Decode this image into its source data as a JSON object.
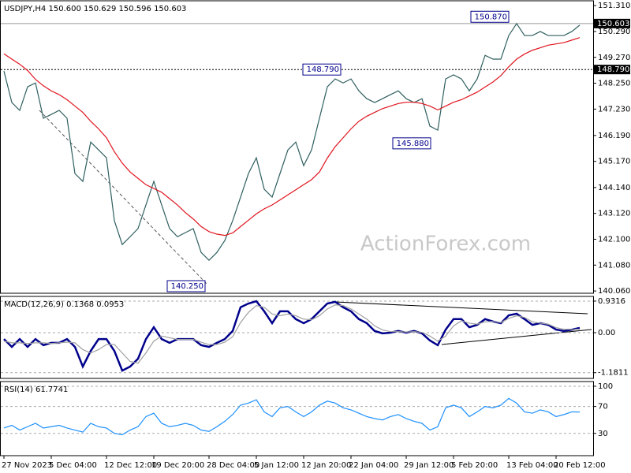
{
  "chart_data": [
    {
      "type": "line",
      "title": "USDJPY,H4  150.600 150.629 150.596 150.603",
      "watermark": "ActionForex.com",
      "categories": [
        "27 Nov 2023",
        null,
        null,
        null,
        null,
        null,
        "5 Dec 04:00",
        null,
        null,
        null,
        null,
        null,
        null,
        "12 Dec 12:00",
        null,
        null,
        null,
        null,
        null,
        "19 Dec 20:00",
        null,
        null,
        null,
        null,
        null,
        null,
        "28 Dec 04:00",
        null,
        null,
        null,
        null,
        null,
        "5 Jan 12:00",
        null,
        null,
        null,
        null,
        null,
        "12 Jan 20:00",
        null,
        null,
        null,
        null,
        null,
        "22 Jan 04:00",
        null,
        null,
        null,
        null,
        null,
        null,
        "29 Jan 12:00",
        null,
        null,
        null,
        null,
        null,
        "5 Feb 20:00",
        null,
        null,
        null,
        null,
        null,
        null,
        "13 Feb 04:00",
        null,
        null,
        null,
        null,
        null,
        "20 Feb 12:00",
        null,
        null,
        null
      ],
      "series": [
        {
          "color": "#2f5f5f",
          "values": [
            148.73,
            147.49,
            147.18,
            148.11,
            148.26,
            146.87,
            147.02,
            147.18,
            146.87,
            144.69,
            144.38,
            145.93,
            145.62,
            145.31,
            142.83,
            141.89,
            142.2,
            142.52,
            143.45,
            144.38,
            143.45,
            142.52,
            142.2,
            142.36,
            142.52,
            141.58,
            141.27,
            141.58,
            142.05,
            142.83,
            143.76,
            144.69,
            145.31,
            144.07,
            143.76,
            144.69,
            145.62,
            145.93,
            145.0,
            145.62,
            146.87,
            148.11,
            148.42,
            148.26,
            148.42,
            147.95,
            147.64,
            147.49,
            147.64,
            147.8,
            147.95,
            147.64,
            147.49,
            147.64,
            146.56,
            146.4,
            148.42,
            148.58,
            148.42,
            147.95,
            148.42,
            149.35,
            149.2,
            149.2,
            150.13,
            150.6,
            150.13,
            150.13,
            150.29,
            150.13,
            150.13,
            150.13,
            150.29,
            150.54
          ]
        },
        {
          "color": "#e0141e",
          "values": [
            149.41,
            149.2,
            149.0,
            148.75,
            148.4,
            148.15,
            147.95,
            147.8,
            147.6,
            147.35,
            147.1,
            146.75,
            146.45,
            146.1,
            145.55,
            145.1,
            144.75,
            144.5,
            144.25,
            144.1,
            143.95,
            143.7,
            143.45,
            143.15,
            142.9,
            142.6,
            142.4,
            142.3,
            142.25,
            142.35,
            142.6,
            142.85,
            143.1,
            143.3,
            143.45,
            143.65,
            143.85,
            144.05,
            144.25,
            144.45,
            144.75,
            145.3,
            145.75,
            146.1,
            146.45,
            146.75,
            146.95,
            147.1,
            147.25,
            147.35,
            147.45,
            147.5,
            147.5,
            147.45,
            147.35,
            147.2,
            147.35,
            147.5,
            147.6,
            147.75,
            147.9,
            148.1,
            148.3,
            148.55,
            148.9,
            149.2,
            149.4,
            149.55,
            149.65,
            149.75,
            149.8,
            149.85,
            149.95,
            150.05
          ]
        }
      ],
      "ylim": [
        139.97,
        151.5
      ],
      "yticks": [
        {
          "value": 151.31,
          "label": "151.310"
        },
        {
          "value": 150.29,
          "label": "150.290"
        },
        {
          "value": 149.27,
          "label": "149.270"
        },
        {
          "value": 148.25,
          "label": "148.250"
        },
        {
          "value": 147.23,
          "label": "147.230"
        },
        {
          "value": 146.19,
          "label": "146.190"
        },
        {
          "value": 145.17,
          "label": "145.170"
        },
        {
          "value": 144.14,
          "label": "144.140"
        },
        {
          "value": 143.12,
          "label": "143.120"
        },
        {
          "value": 142.1,
          "label": "142.100"
        },
        {
          "value": 141.08,
          "label": "141.080"
        },
        {
          "value": 140.06,
          "label": "140.060"
        }
      ],
      "price_lines": [
        {
          "value": 150.603,
          "label": "150.603",
          "color": "#999999"
        },
        {
          "value": 148.79,
          "label": "148.790",
          "color": "#000000"
        }
      ],
      "annotations": [
        {
          "value": 150.87,
          "label": "150.870"
        },
        {
          "value": 148.79,
          "label": "148.790"
        },
        {
          "value": 145.88,
          "label": "145.880"
        },
        {
          "value": 140.25,
          "label": "140.250"
        }
      ],
      "grid": false
    },
    {
      "type": "line",
      "title": "MACD(12,26,9) 0.1368 0.0953",
      "series": [
        {
          "color": "#00008b",
          "values": [
            -0.19,
            -0.42,
            -0.19,
            -0.42,
            -0.19,
            -0.37,
            -0.3,
            -0.3,
            -0.19,
            -0.42,
            -1.0,
            -0.54,
            -0.19,
            -0.19,
            -0.54,
            -1.12,
            -1.0,
            -0.77,
            -0.19,
            0.16,
            -0.19,
            -0.3,
            -0.19,
            -0.19,
            -0.19,
            -0.37,
            -0.42,
            -0.3,
            -0.19,
            0.05,
            0.75,
            0.86,
            0.93,
            0.63,
            0.28,
            0.63,
            0.63,
            0.4,
            0.28,
            0.4,
            0.63,
            0.86,
            0.91,
            0.75,
            0.63,
            0.4,
            0.28,
            0.05,
            -0.02,
            0.0,
            0.05,
            0.0,
            0.05,
            -0.02,
            -0.23,
            -0.37,
            0.09,
            0.4,
            0.4,
            0.16,
            0.23,
            0.4,
            0.33,
            0.28,
            0.51,
            0.56,
            0.4,
            0.23,
            0.28,
            0.23,
            0.09,
            0.05,
            0.09,
            0.14
          ]
        },
        {
          "color": "#a0a0a0",
          "values": [
            -0.25,
            -0.3,
            -0.3,
            -0.32,
            -0.3,
            -0.3,
            -0.32,
            -0.3,
            -0.28,
            -0.3,
            -0.5,
            -0.6,
            -0.5,
            -0.35,
            -0.35,
            -0.6,
            -0.85,
            -0.9,
            -0.6,
            -0.25,
            -0.1,
            -0.15,
            -0.2,
            -0.2,
            -0.2,
            -0.28,
            -0.35,
            -0.35,
            -0.28,
            -0.12,
            0.3,
            0.6,
            0.8,
            0.75,
            0.55,
            0.5,
            0.55,
            0.5,
            0.4,
            0.38,
            0.5,
            0.7,
            0.82,
            0.8,
            0.7,
            0.55,
            0.4,
            0.2,
            0.08,
            0.03,
            0.03,
            0.02,
            0.03,
            0.01,
            -0.1,
            -0.25,
            -0.1,
            0.2,
            0.35,
            0.28,
            0.25,
            0.32,
            0.33,
            0.3,
            0.42,
            0.5,
            0.45,
            0.32,
            0.28,
            0.25,
            0.15,
            0.1,
            0.1,
            0.1
          ]
        }
      ],
      "ylim": [
        -1.35,
        1.07
      ],
      "yticks": [
        0.9316,
        {
          "value": 0,
          "label": "0.00"
        },
        -1.1811
      ],
      "grid": true
    },
    {
      "type": "line",
      "title": "RSI(14) 61.7741",
      "series": [
        {
          "color": "#1e90ff",
          "values": [
            38,
            42,
            35,
            40,
            45,
            38,
            40,
            42,
            38,
            35,
            32,
            45,
            40,
            38,
            30,
            28,
            35,
            40,
            55,
            60,
            45,
            40,
            42,
            45,
            42,
            35,
            33,
            40,
            48,
            58,
            72,
            75,
            80,
            62,
            55,
            68,
            70,
            62,
            55,
            62,
            72,
            78,
            75,
            68,
            65,
            60,
            55,
            52,
            50,
            55,
            58,
            52,
            48,
            45,
            35,
            40,
            68,
            72,
            68,
            55,
            62,
            70,
            68,
            72,
            82,
            75,
            62,
            60,
            65,
            62,
            55,
            58,
            62,
            61.7741
          ]
        }
      ],
      "ylim": [
        -3,
        107
      ],
      "yticks": [
        100,
        70,
        30
      ],
      "grid": true
    }
  ]
}
